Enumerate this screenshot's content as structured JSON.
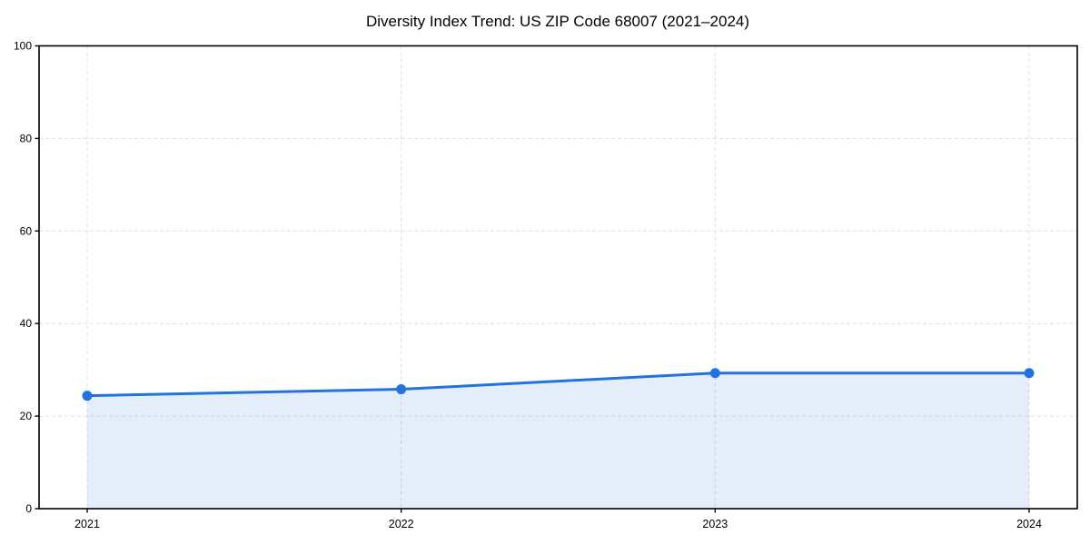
{
  "figure": {
    "background": "#ffffff"
  },
  "chart_data": {
    "type": "area",
    "title": "Diversity Index Trend: US ZIP Code 68007 (2021–2024)",
    "categories": [
      "2021",
      "2022",
      "2023",
      "2024"
    ],
    "series": [
      {
        "name": "Diversity Index",
        "values": [
          24.4,
          25.8,
          29.3,
          29.3
        ]
      }
    ],
    "xlabel": "",
    "ylabel": "",
    "ylim": [
      0,
      100
    ],
    "yticks": [
      0,
      20,
      40,
      60,
      80,
      100
    ],
    "grid": true,
    "grid_style": "dashed",
    "legend": "none",
    "marker": "circle",
    "colors": {
      "line": "#2273e0",
      "marker": "#2273e0",
      "fill": "#2273e0",
      "fill_opacity": "0.12",
      "grid": "#dfdfdf",
      "spine": "#000000",
      "text": "#000000"
    }
  }
}
